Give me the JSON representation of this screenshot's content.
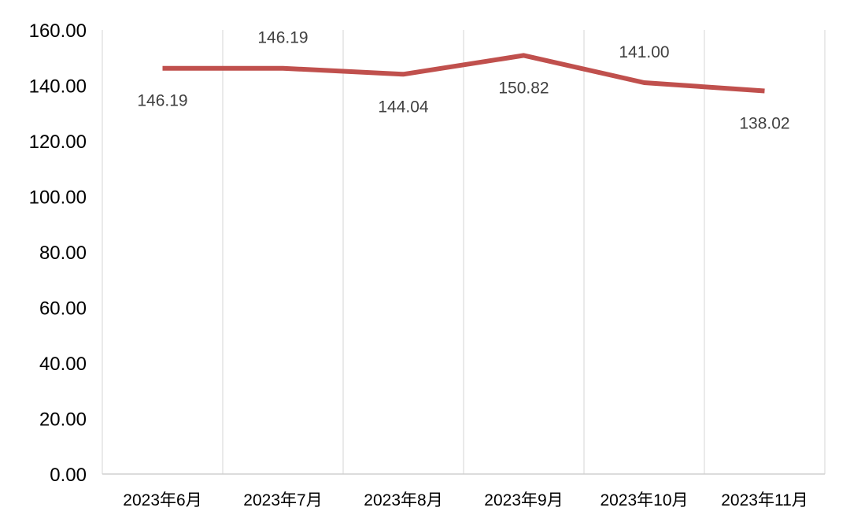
{
  "chart_data": {
    "type": "line",
    "title": "",
    "xlabel": "",
    "ylabel": "",
    "categories": [
      "2023年6月",
      "2023年7月",
      "2023年8月",
      "2023年9月",
      "2023年10月",
      "2023年11月"
    ],
    "series": [
      {
        "values": [
          146.19,
          146.19,
          144.04,
          150.82,
          141.0,
          138.02
        ]
      }
    ],
    "data_labels": [
      "146.19",
      "146.19",
      "144.04",
      "150.82",
      "141.00",
      "138.02"
    ],
    "data_label_positions": [
      "below",
      "above",
      "below",
      "below",
      "above",
      "below"
    ],
    "ylim": [
      0,
      160
    ],
    "y_ticks": [
      "0.00",
      "20.00",
      "40.00",
      "60.00",
      "80.00",
      "100.00",
      "120.00",
      "140.00",
      "160.00"
    ],
    "grid": "vertical",
    "legend": "none",
    "colors": {
      "line": "#c0504d",
      "grid": "#e3e3e3",
      "axis": "#d0d0d0",
      "label": "#404040"
    }
  }
}
